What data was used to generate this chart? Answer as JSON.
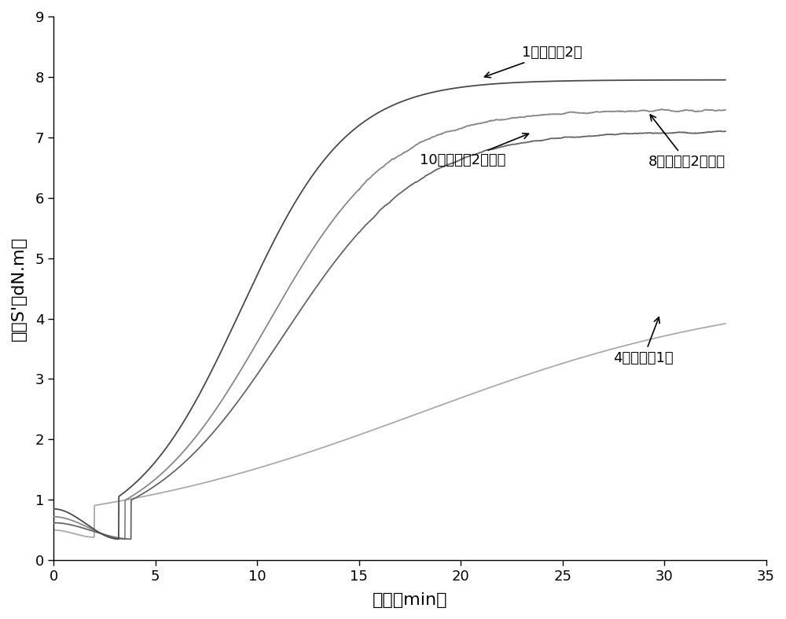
{
  "xlabel": "时间（min）",
  "ylabel": "扭矩S'（dN.m）",
  "xlim": [
    0,
    35
  ],
  "ylim": [
    0,
    9
  ],
  "xticks": [
    0,
    5,
    10,
    15,
    20,
    25,
    30,
    35
  ],
  "yticks": [
    0,
    1,
    2,
    3,
    4,
    5,
    6,
    7,
    8,
    9
  ],
  "bg_color": "#ffffff",
  "line_color_1": "#4a4a4a",
  "line_color_8": "#888888",
  "line_color_10": "#666666",
  "line_color_4": "#aaaaaa",
  "figsize": [
    10.0,
    7.88
  ],
  "dpi": 100
}
